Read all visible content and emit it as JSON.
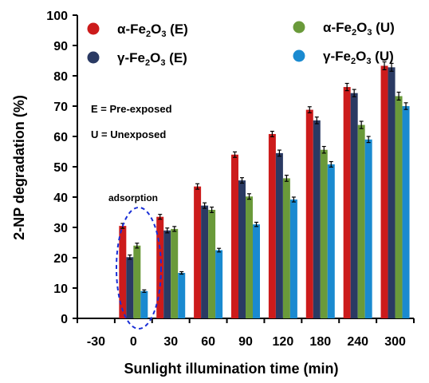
{
  "chart_data": {
    "type": "bar",
    "xlabel": "Sunlight illumination time (min)",
    "ylabel": "2-NP degradation (%)",
    "ylim": [
      0,
      100
    ],
    "yticks": [
      0,
      10,
      20,
      30,
      40,
      50,
      60,
      70,
      80,
      90,
      100
    ],
    "categories": [
      "-30",
      "0",
      "30",
      "60",
      "90",
      "120",
      "180",
      "240",
      "300"
    ],
    "series": [
      {
        "name": "α-Fe2O3 (E)",
        "label": {
          "prefix": "α-Fe",
          "sub1": "2",
          "mid": "O",
          "sub2": "3",
          "suffix": " (E)"
        },
        "color": "#cc1b1b",
        "values": [
          null,
          30.5,
          33.5,
          43.5,
          54.0,
          60.8,
          68.8,
          76.3,
          83.3
        ],
        "errors": [
          null,
          0.8,
          0.8,
          0.9,
          0.9,
          0.9,
          1.0,
          1.2,
          1.3
        ]
      },
      {
        "name": "γ-Fe2O3 (E)",
        "label": {
          "prefix": "γ-Fe",
          "sub1": "2",
          "mid": "O",
          "sub2": "3",
          "suffix": " (E)"
        },
        "color": "#2a3a63",
        "values": [
          null,
          20.2,
          29.0,
          37.2,
          45.5,
          54.5,
          65.3,
          74.3,
          82.8
        ],
        "errors": [
          null,
          0.7,
          0.8,
          0.9,
          0.9,
          1.0,
          1.1,
          1.2,
          1.3
        ]
      },
      {
        "name": "α-Fe2O3 (U)",
        "label": {
          "prefix": "α-Fe",
          "sub1": "2",
          "mid": "O",
          "sub2": "3",
          "suffix": " (U)"
        },
        "color": "#6a9a3a",
        "values": [
          null,
          24.0,
          29.5,
          35.8,
          40.2,
          46.2,
          55.6,
          63.8,
          73.3
        ],
        "errors": [
          null,
          0.8,
          0.8,
          0.9,
          0.9,
          1.0,
          1.1,
          1.2,
          1.3
        ]
      },
      {
        "name": "γ-Fe2O3 (U)",
        "label": {
          "prefix": "γ-Fe",
          "sub1": "2",
          "mid": "O",
          "sub2": "3",
          "suffix": " (U)"
        },
        "color": "#1a8ad0",
        "values": [
          null,
          9.0,
          15.0,
          22.5,
          31.0,
          39.2,
          50.8,
          59.0,
          70.0
        ],
        "errors": [
          null,
          0.4,
          0.4,
          0.6,
          0.7,
          0.8,
          0.9,
          1.0,
          1.1
        ]
      }
    ],
    "annotations": {
      "legend_note_1": "E = Pre-exposed",
      "legend_note_2": "U = Unexposed",
      "adsorption_label": "adsorption"
    },
    "legend_position": "top",
    "grid": false
  }
}
